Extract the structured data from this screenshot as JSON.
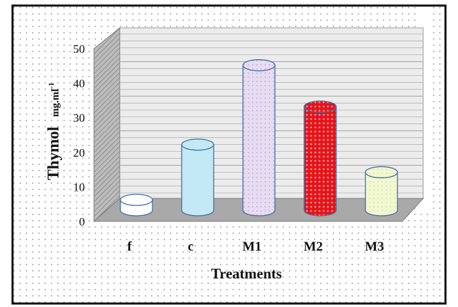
{
  "chart_data": {
    "type": "bar",
    "style": "3d-cylinder",
    "categories": [
      "f",
      "c",
      "M1",
      "M2",
      "M3"
    ],
    "values": [
      3,
      19,
      42,
      30,
      11
    ],
    "bar_colors": [
      "#ffffff",
      "#bfe7f5",
      "#e6d8f0",
      "#e8161b",
      "#f1f7cf"
    ],
    "ylabel_main": "Thymol",
    "ylabel_unit": "mg.ml",
    "ylabel_unit_sup": "-1",
    "xlabel": "Treatments",
    "ylim": [
      0,
      50
    ],
    "yticks": [
      "0",
      "10",
      "20",
      "30",
      "40",
      "50"
    ],
    "grid": true,
    "background": "dotted"
  }
}
